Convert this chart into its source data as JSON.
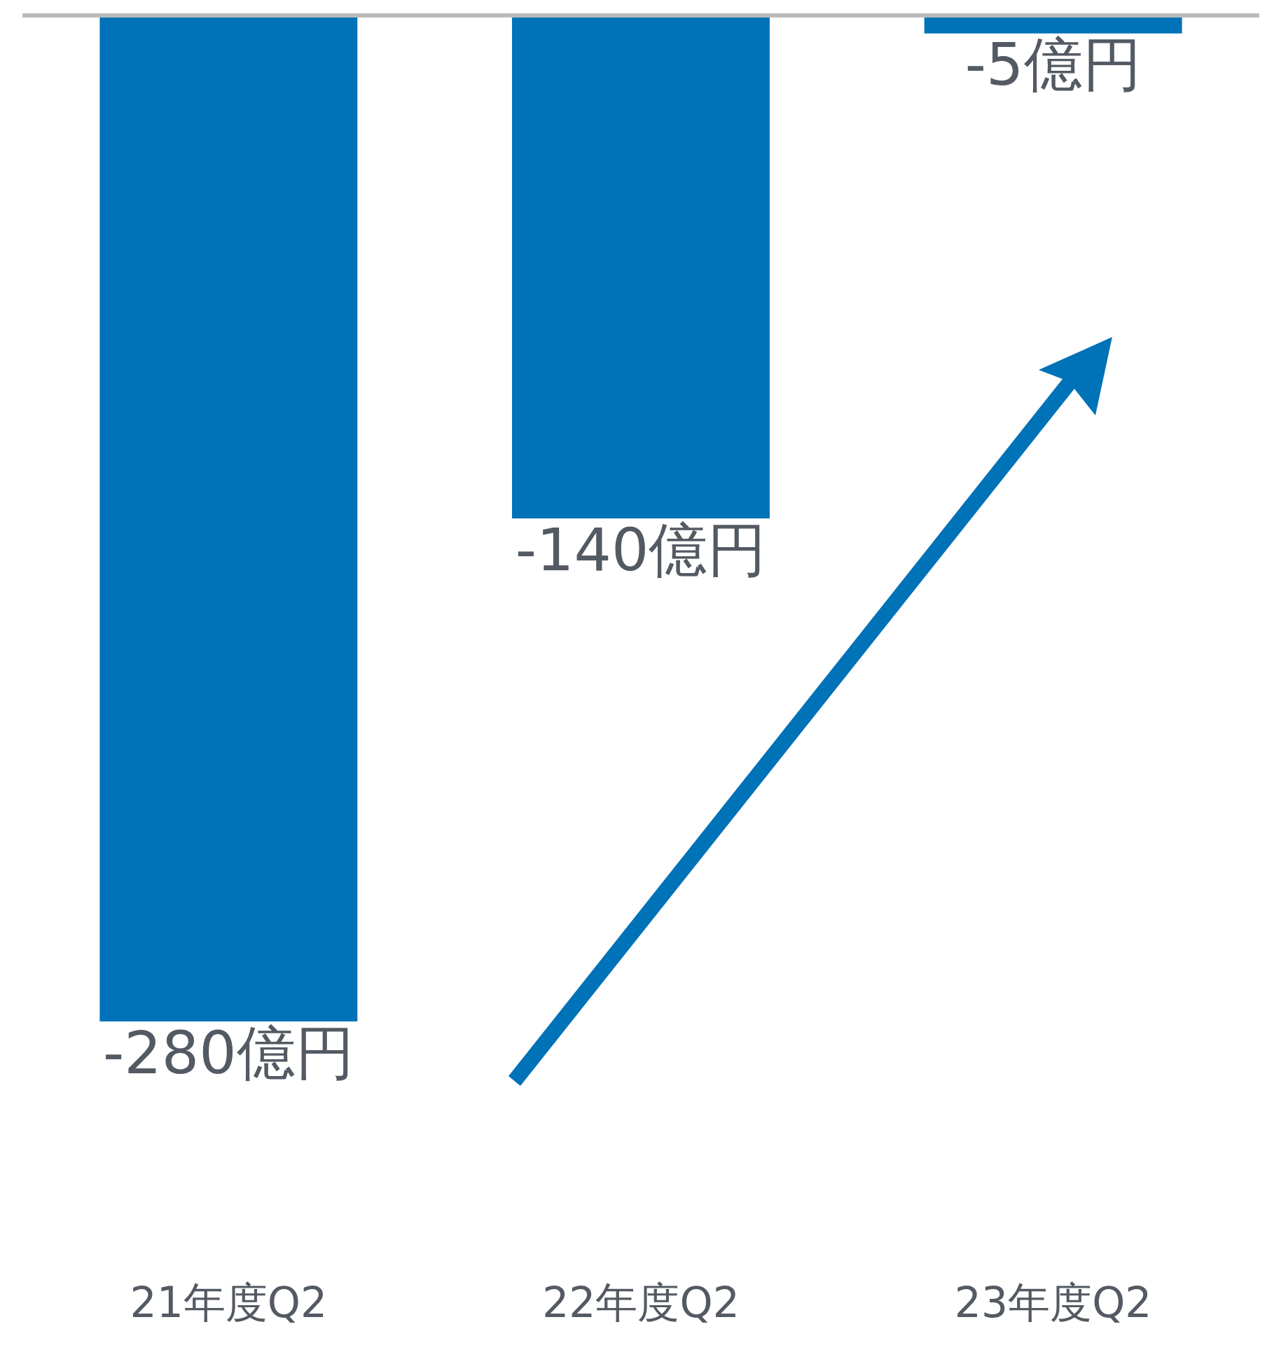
{
  "chart_data": {
    "type": "bar",
    "categories": [
      "21年度Q2",
      "22年度Q2",
      "23年度Q2"
    ],
    "values": [
      -280,
      -140,
      -5
    ],
    "value_labels": [
      "-280億円",
      "-140億円",
      "-5億円"
    ],
    "color": "#0072b8"
  }
}
